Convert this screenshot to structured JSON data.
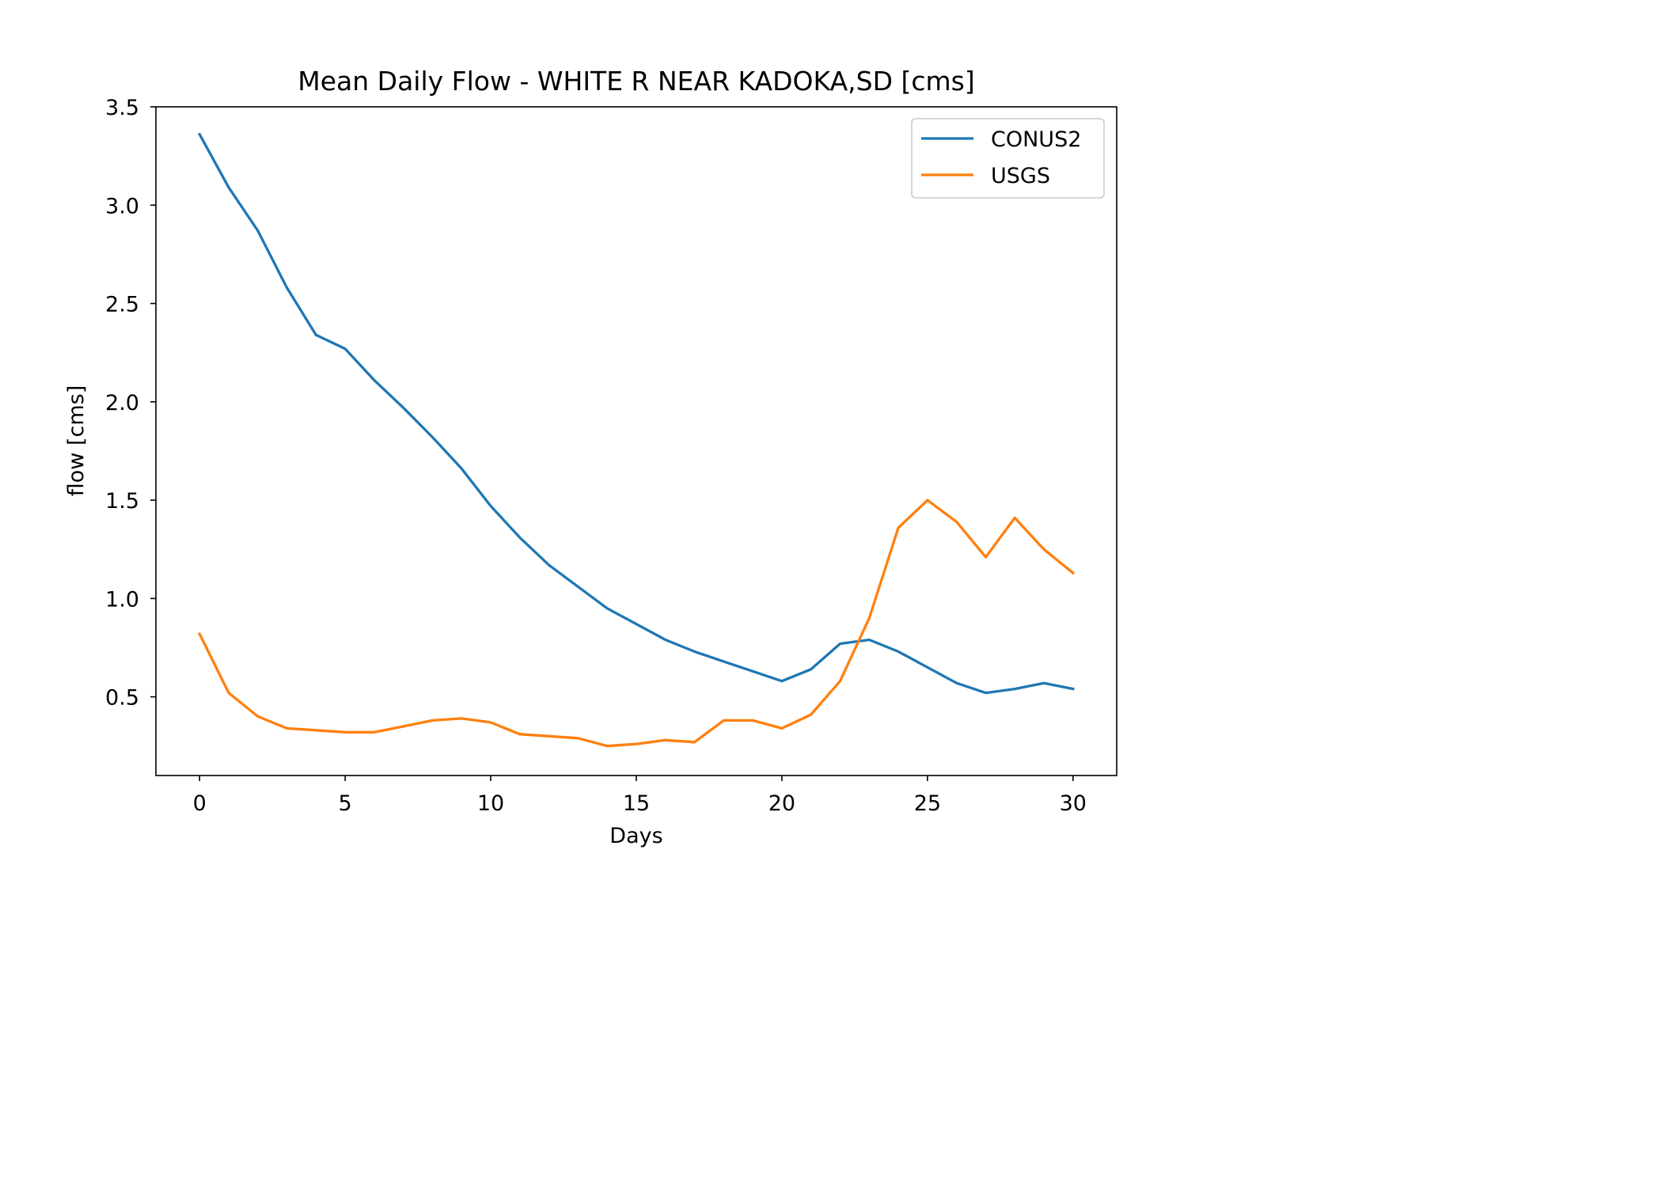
{
  "chart_data": {
    "type": "line",
    "title": "Mean Daily Flow - WHITE R NEAR KADOKA,SD [cms]",
    "xlabel": "Days",
    "ylabel": "flow [cms]",
    "xlim": [
      -1.5,
      31.5
    ],
    "ylim": [
      0.1,
      3.5
    ],
    "xticks": [
      0,
      5,
      10,
      15,
      20,
      25,
      30
    ],
    "xtick_labels": [
      "0",
      "5",
      "10",
      "15",
      "20",
      "25",
      "30"
    ],
    "yticks": [
      0.5,
      1.0,
      1.5,
      2.0,
      2.5,
      3.0,
      3.5
    ],
    "ytick_labels": [
      "0.5",
      "1.0",
      "1.5",
      "2.0",
      "2.5",
      "3.0",
      "3.5"
    ],
    "grid": false,
    "legend_position": "top-right",
    "x": [
      0,
      1,
      2,
      3,
      4,
      5,
      6,
      7,
      8,
      9,
      10,
      11,
      12,
      13,
      14,
      15,
      16,
      17,
      18,
      19,
      20,
      21,
      22,
      23,
      24,
      25,
      26,
      27,
      28,
      29,
      30
    ],
    "series": [
      {
        "name": "CONUS2",
        "color": "#1f77b4",
        "values": [
          3.36,
          3.09,
          2.87,
          2.58,
          2.34,
          2.27,
          2.11,
          1.97,
          1.82,
          1.66,
          1.47,
          1.31,
          1.17,
          1.06,
          0.95,
          0.87,
          0.79,
          0.73,
          0.68,
          0.63,
          0.58,
          0.64,
          0.77,
          0.79,
          0.73,
          0.65,
          0.57,
          0.52,
          0.54,
          0.57,
          0.54
        ]
      },
      {
        "name": "USGS",
        "color": "#ff7f0e",
        "values": [
          0.82,
          0.52,
          0.4,
          0.34,
          0.33,
          0.32,
          0.32,
          0.35,
          0.38,
          0.39,
          0.37,
          0.31,
          0.3,
          0.29,
          0.25,
          0.26,
          0.28,
          0.27,
          0.38,
          0.38,
          0.34,
          0.41,
          0.58,
          0.9,
          1.36,
          1.5,
          1.39,
          1.21,
          1.41,
          1.25,
          1.13
        ]
      }
    ]
  }
}
